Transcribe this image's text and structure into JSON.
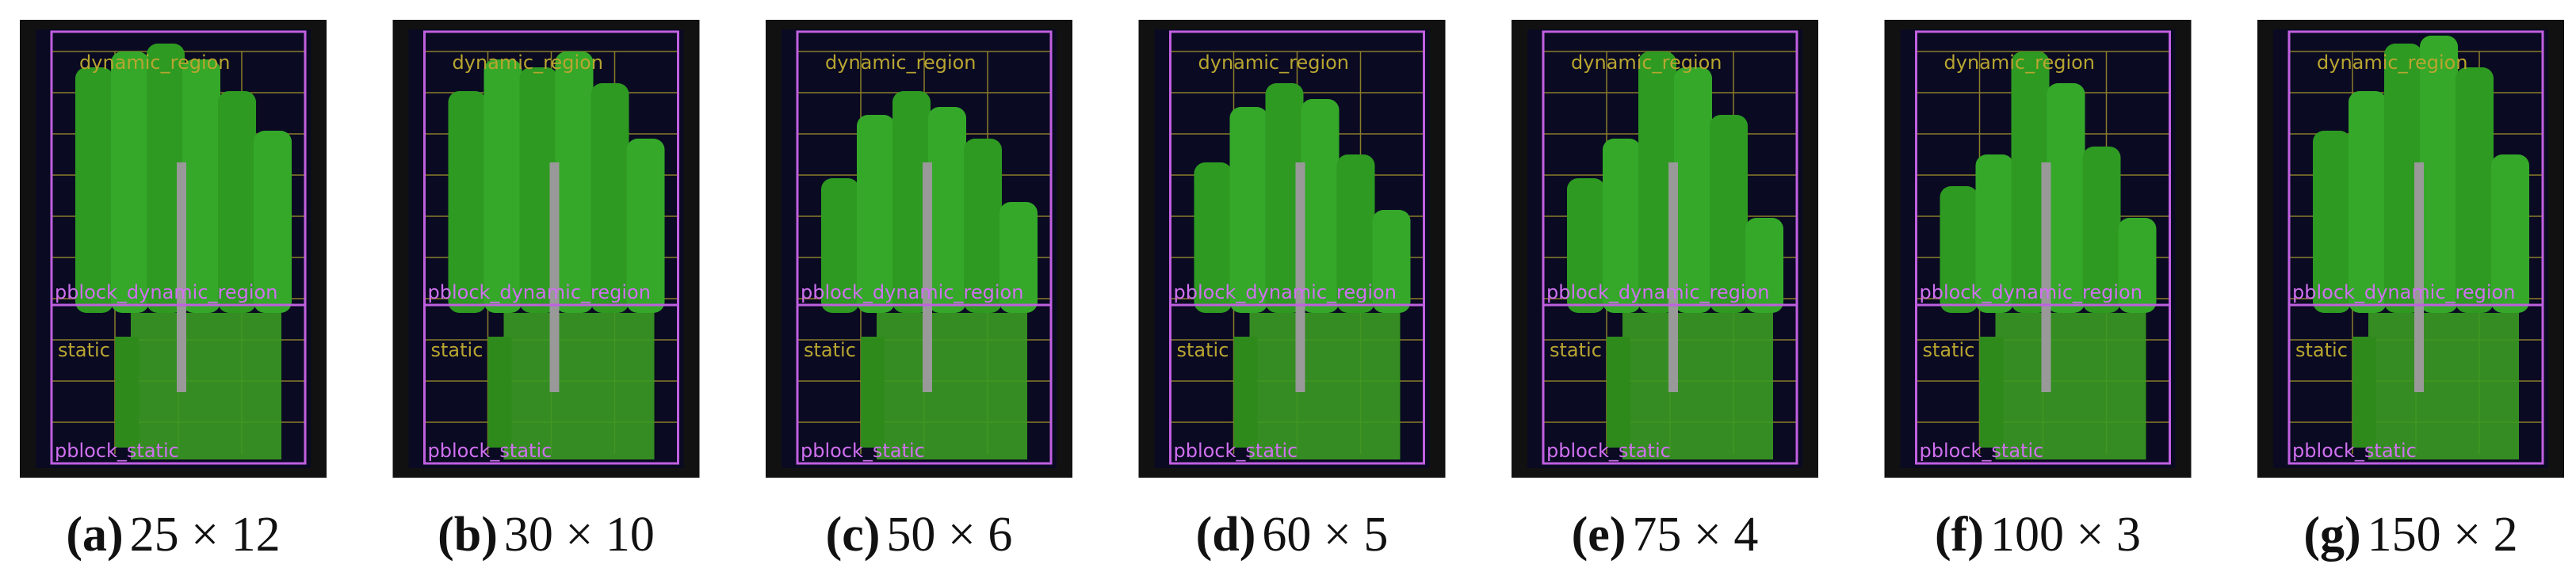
{
  "panels": [
    {
      "label": "(a)",
      "caption": "25 × 12"
    },
    {
      "label": "(b)",
      "caption": "30 × 10"
    },
    {
      "label": "(c)",
      "caption": "50 × 6"
    },
    {
      "label": "(d)",
      "caption": "60 × 5"
    },
    {
      "label": "(e)",
      "caption": "75 × 4"
    },
    {
      "label": "(f)",
      "caption": "100 × 3"
    },
    {
      "label": "(g)",
      "caption": "150 × 2"
    }
  ],
  "region_labels": {
    "dynamic": "dynamic_region",
    "pblock_dynamic": "pblock_dynamic_region",
    "static": "static",
    "pblock_static": "pblock_static"
  }
}
